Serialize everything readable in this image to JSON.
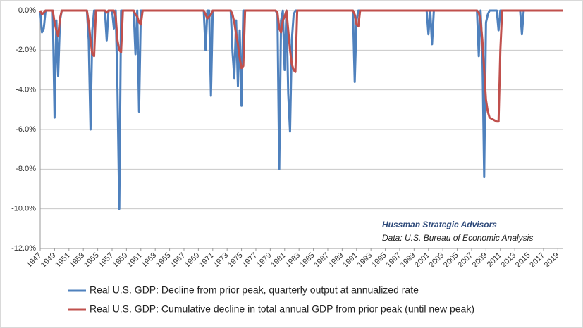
{
  "chart_data": {
    "type": "line",
    "annotations": [
      "Hussman Strategic Advisors",
      "Data: U.S. Bureau of Economic Analysis"
    ],
    "x": [
      1947.0,
      1947.25,
      1947.5,
      1947.75,
      1948.75,
      1949.0,
      1949.25,
      1949.5,
      1949.75,
      1950.0,
      1953.5,
      1953.75,
      1954.0,
      1954.25,
      1954.5,
      1954.75,
      1956.0,
      1956.25,
      1956.5,
      1957.0,
      1957.25,
      1957.5,
      1957.75,
      1958.0,
      1958.25,
      1958.5,
      1960.0,
      1960.25,
      1960.5,
      1960.75,
      1961.0,
      1961.25,
      1969.75,
      1970.0,
      1970.25,
      1970.5,
      1970.75,
      1971.0,
      1973.5,
      1973.75,
      1974.0,
      1974.25,
      1974.5,
      1974.75,
      1975.0,
      1975.25,
      1975.5,
      1979.75,
      1980.0,
      1980.25,
      1980.5,
      1980.75,
      1981.0,
      1981.25,
      1981.5,
      1981.75,
      1982.0,
      1982.25,
      1982.5,
      1982.75,
      1990.5,
      1990.75,
      1991.0,
      1991.25,
      1991.5,
      2000.75,
      2001.0,
      2001.25,
      2001.5,
      2001.75,
      2007.75,
      2008.0,
      2008.25,
      2008.5,
      2008.75,
      2009.0,
      2009.25,
      2009.5,
      2010.0,
      2010.5,
      2010.75,
      2011.0,
      2011.25,
      2013.75,
      2014.0,
      2014.25,
      2019.75
    ],
    "series": [
      {
        "name": "Real U.S. GDP: Decline from prior peak, quarterly output at annualized rate",
        "color": "#4f81bd",
        "values": [
          0,
          -1.1,
          -0.9,
          0,
          0,
          -5.4,
          -0.5,
          -3.3,
          -0.5,
          0,
          0,
          -1.5,
          -6.0,
          -1.0,
          0,
          0,
          0,
          -1.5,
          0,
          0,
          -0.9,
          0,
          -4.0,
          -10.0,
          0,
          0,
          0,
          -2.2,
          0,
          -5.1,
          0,
          0,
          0,
          -2.0,
          0,
          0,
          -4.3,
          0,
          0,
          -2.1,
          -3.4,
          -0.5,
          -3.8,
          -1.0,
          -4.8,
          0,
          0,
          0,
          -0.2,
          -8.0,
          -0.5,
          0,
          -3.0,
          0,
          -4.2,
          -6.1,
          -1.5,
          -0.2,
          0,
          0,
          0,
          -3.6,
          -0.5,
          0,
          0,
          0,
          -1.2,
          0,
          -1.7,
          0,
          0,
          -2.3,
          0,
          -2.0,
          -8.4,
          -0.6,
          -0.2,
          0,
          0,
          0,
          -1.0,
          0,
          0,
          0,
          -1.2,
          0,
          0
        ]
      },
      {
        "name": "Real U.S. GDP: Cumulative decline in total annual GDP from prior peak (until new peak)",
        "color": "#c0504d",
        "values": [
          0,
          -0.2,
          -0.1,
          0,
          0,
          -0.6,
          -1.0,
          -1.3,
          -0.4,
          0,
          0,
          -0.6,
          -1.5,
          -2.2,
          -2.3,
          0,
          0,
          -0.1,
          0,
          0,
          0,
          -0.3,
          -1.5,
          -2.0,
          -2.1,
          0,
          0,
          -0.2,
          -0.3,
          -0.6,
          -0.7,
          0,
          0,
          -0.2,
          -0.4,
          -0.3,
          -0.2,
          0,
          0,
          -0.2,
          -0.6,
          -1.2,
          -1.7,
          -2.4,
          -2.9,
          -2.8,
          0,
          0,
          -0.1,
          -0.9,
          -1.1,
          -0.5,
          -0.3,
          0,
          -1.0,
          -2.0,
          -2.7,
          -3.0,
          -3.1,
          0,
          0,
          -0.2,
          -0.7,
          -0.8,
          0,
          0,
          0,
          0,
          0,
          0,
          0,
          -0.1,
          -0.5,
          -1.5,
          -3.0,
          -4.5,
          -5.1,
          -5.4,
          -5.5,
          -5.6,
          -5.6,
          -2.0,
          0,
          0,
          0,
          0,
          0
        ]
      }
    ],
    "xlim": [
      1947,
      2019.75
    ],
    "xticks": [
      1947,
      1949,
      1951,
      1953,
      1955,
      1957,
      1959,
      1961,
      1963,
      1965,
      1967,
      1969,
      1971,
      1973,
      1975,
      1977,
      1979,
      1981,
      1983,
      1985,
      1987,
      1989,
      1991,
      1993,
      1995,
      1997,
      1999,
      2001,
      2003,
      2005,
      2007,
      2009,
      2011,
      2013,
      2015,
      2017,
      2019
    ],
    "ylim": [
      -12,
      0
    ],
    "yticks": [
      {
        "value": 0,
        "label": "0.0%"
      },
      {
        "value": -2,
        "label": "-2.0%"
      },
      {
        "value": -4,
        "label": "-4.0%"
      },
      {
        "value": -6,
        "label": "-6.0%"
      },
      {
        "value": -8,
        "label": "-8.0%"
      },
      {
        "value": -10,
        "label": "-10.0%"
      },
      {
        "value": -12,
        "label": "-12.0%"
      }
    ],
    "grid": true
  }
}
